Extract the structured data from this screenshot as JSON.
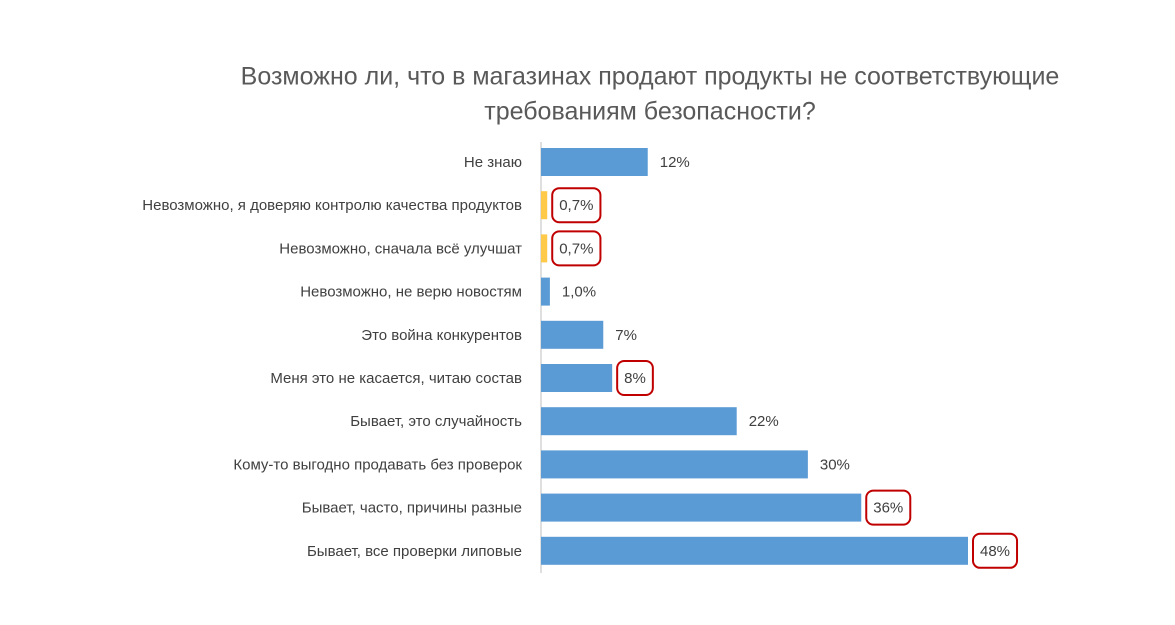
{
  "chart_data": {
    "type": "bar",
    "orientation": "horizontal",
    "title": [
      "Возможно ли, что в магазинах продают продукты не соответствующие",
      "требованиям безопасности?"
    ],
    "categories": [
      "Не знаю",
      "Невозможно, я доверяю контролю качества продуктов",
      "Невозможно, сначала всё улучшат",
      "Невозможно, не верю новостям",
      "Это война конкурентов",
      "Меня это не касается, читаю состав",
      "Бывает, это случайность",
      "Кому-то выгодно продавать без проверок",
      "Бывает, часто, причины разные",
      "Бывает, все проверки липовые"
    ],
    "values": [
      12,
      0.7,
      0.7,
      1.0,
      7,
      8,
      22,
      30,
      36,
      48
    ],
    "value_labels": [
      "12%",
      "0,7%",
      "0,7%",
      "1,0%",
      "7%",
      "8%",
      "22%",
      "30%",
      "36%",
      "48%"
    ],
    "colors": [
      "#5b9bd5",
      "#ffc94a",
      "#ffc94a",
      "#5b9bd5",
      "#5b9bd5",
      "#5b9bd5",
      "#5b9bd5",
      "#5b9bd5",
      "#5b9bd5",
      "#5b9bd5"
    ],
    "highlighted": [
      false,
      true,
      true,
      false,
      false,
      true,
      false,
      false,
      true,
      true
    ],
    "highlight_color": "#c00000"
  }
}
